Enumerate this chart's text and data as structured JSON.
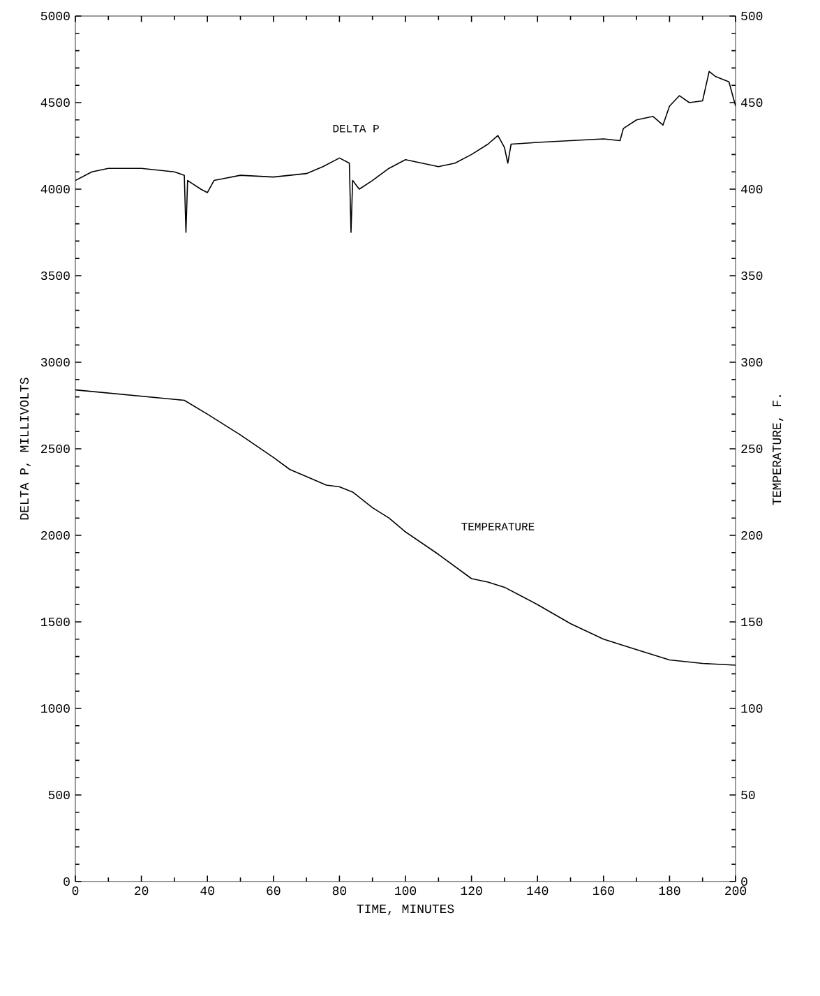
{
  "chart_data": {
    "type": "line",
    "xlabel": "TIME, MINUTES",
    "ylabel": "DELTA P, MILLIVOLTS",
    "y2label": "TEMPERATURE, F.",
    "xlim": [
      0,
      200
    ],
    "xticks": [
      0,
      20,
      40,
      60,
      80,
      100,
      120,
      140,
      160,
      180,
      200
    ],
    "ylim": [
      0,
      5000
    ],
    "yticks": [
      0,
      500,
      1000,
      1500,
      2000,
      2500,
      3000,
      3500,
      4000,
      4500,
      5000
    ],
    "y2lim": [
      0,
      500
    ],
    "y2ticks": [
      0,
      50,
      100,
      150,
      200,
      250,
      300,
      350,
      400,
      450,
      500
    ],
    "marker": "none",
    "line_style": "solid",
    "grid": false,
    "legend": false,
    "series": [
      {
        "name": "DELTA P",
        "color": "#000000",
        "x": [
          0,
          5,
          10,
          20,
          30,
          33,
          33.5,
          34,
          38,
          40,
          42,
          50,
          60,
          70,
          75,
          80,
          83,
          83.5,
          84,
          86,
          90,
          95,
          100,
          105,
          110,
          115,
          120,
          125,
          128,
          130,
          131,
          132,
          140,
          150,
          160,
          165,
          166,
          170,
          175,
          178,
          180,
          183,
          186,
          190,
          192,
          194,
          198,
          200
        ],
        "values": [
          4050,
          4100,
          4120,
          4120,
          4100,
          4080,
          3750,
          4050,
          4000,
          3980,
          4050,
          4080,
          4070,
          4090,
          4130,
          4180,
          4150,
          3750,
          4050,
          4000,
          4050,
          4120,
          4170,
          4150,
          4130,
          4150,
          4200,
          4260,
          4310,
          4240,
          4150,
          4260,
          4270,
          4280,
          4290,
          4280,
          4350,
          4400,
          4420,
          4370,
          4480,
          4540,
          4500,
          4510,
          4680,
          4650,
          4620,
          4480
        ]
      },
      {
        "name": "TEMPERATURE",
        "color": "#000000",
        "axis": "y2",
        "x": [
          0,
          33,
          40,
          50,
          60,
          65,
          70,
          76,
          80,
          84,
          90,
          95,
          100,
          110,
          120,
          125,
          130,
          135,
          140,
          150,
          160,
          170,
          180,
          190,
          200
        ],
        "values": [
          284,
          278,
          270,
          258,
          245,
          238,
          234,
          229,
          228,
          225,
          216,
          210,
          202,
          189,
          175,
          173,
          170,
          165,
          160,
          149,
          140,
          134,
          128,
          126,
          125
        ]
      }
    ]
  }
}
